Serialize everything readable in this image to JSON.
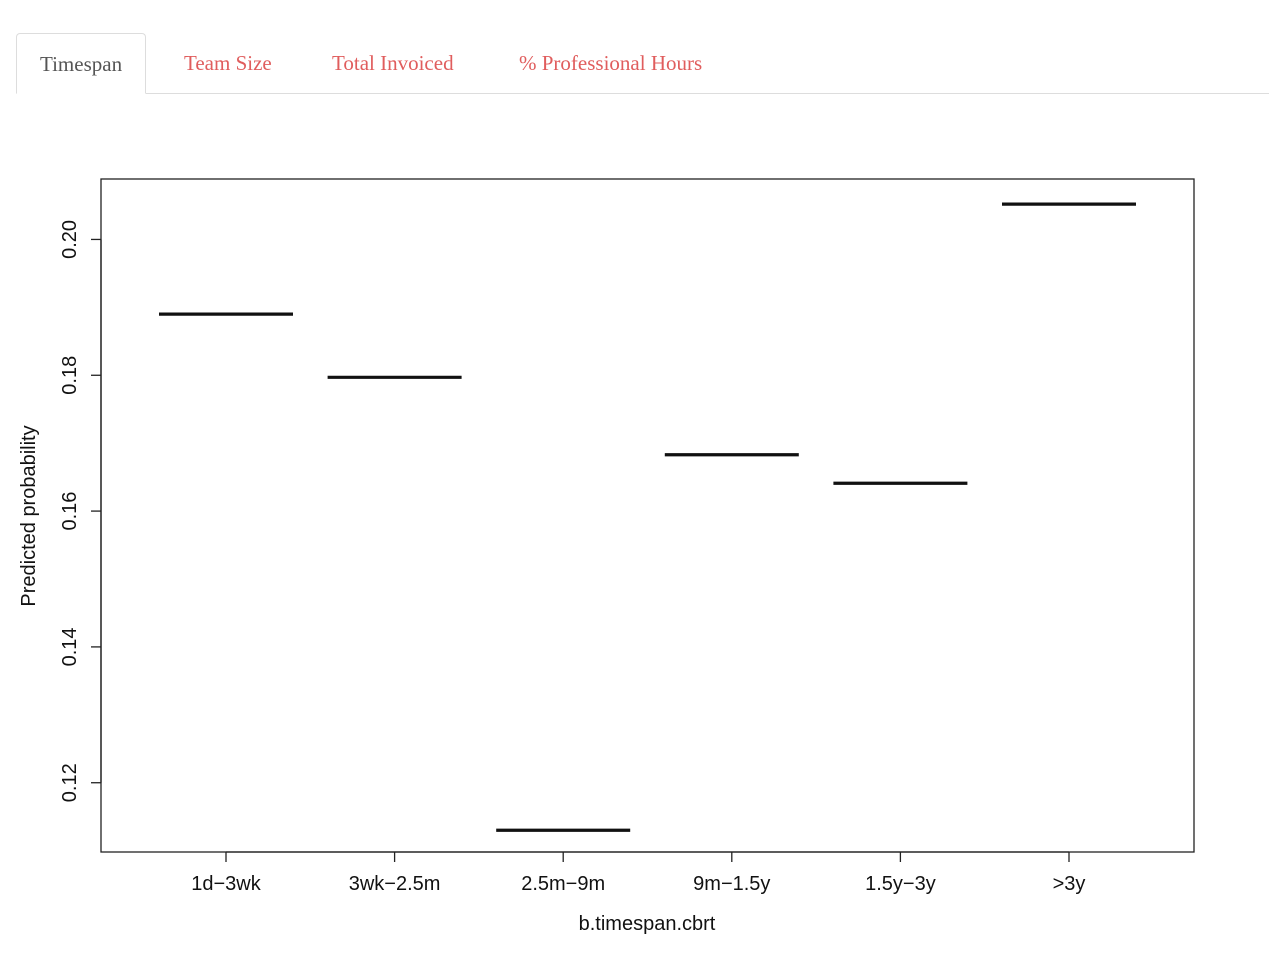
{
  "tabs": [
    {
      "label": "Timespan",
      "active": true
    },
    {
      "label": "Team Size",
      "active": false
    },
    {
      "label": "Total Invoiced",
      "active": false
    },
    {
      "label": "% Professional Hours",
      "active": false
    }
  ],
  "colors": {
    "tab_link": "#e05d5d",
    "tab_active_text": "#555555",
    "tab_border": "#dddddd",
    "series": "#111111"
  },
  "chart_data": {
    "type": "line",
    "style": "horizontal segments per category",
    "categories": [
      "1d−3wk",
      "3wk−2.5m",
      "2.5m−9m",
      "9m−1.5y",
      "1.5y−3y",
      ">3y"
    ],
    "values": [
      0.189,
      0.1797,
      0.113,
      0.1683,
      0.1641,
      0.2052
    ],
    "xlabel": "b.timespan.cbrt",
    "ylabel": "Predicted probability",
    "yticks": [
      "0.12",
      "0.14",
      "0.16",
      "0.18",
      "0.20"
    ],
    "ylim": [
      0.1098,
      0.2089
    ],
    "grid": false
  }
}
